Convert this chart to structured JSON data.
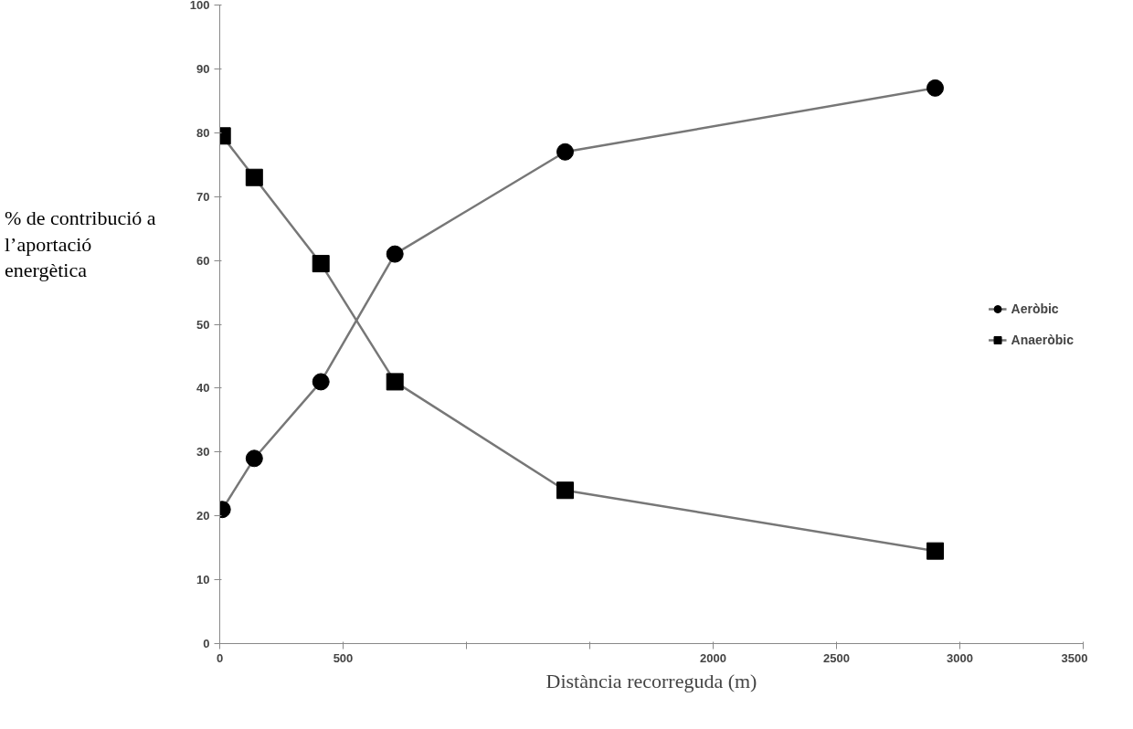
{
  "chart_data": {
    "type": "line",
    "xlabel": "Distància recorreguda (m)",
    "ylabel": "% de contribució a l’aportació energètica",
    "x": [
      10,
      140,
      410,
      710,
      1400,
      2900
    ],
    "series": [
      {
        "name": "Aeròbic",
        "color": "#000000",
        "marker": "circle",
        "values": [
          21,
          29,
          41,
          61,
          77,
          87
        ]
      },
      {
        "name": "Anaeròbic",
        "color": "#000000",
        "marker": "square",
        "values": [
          79.5,
          73,
          59.5,
          41,
          24,
          14.5
        ]
      }
    ],
    "xlim": [
      0,
      3500
    ],
    "xticks": [
      0,
      500,
      {
        "value": 1000,
        "label": null
      },
      {
        "value": 1500,
        "label": null
      },
      2000,
      2500,
      3000,
      3500
    ],
    "ylim": [
      0,
      100
    ],
    "yticks": [
      0,
      10,
      20,
      30,
      40,
      50,
      60,
      70,
      80,
      90,
      100
    ],
    "grid": false,
    "legend": "right",
    "line_style": "solid"
  }
}
